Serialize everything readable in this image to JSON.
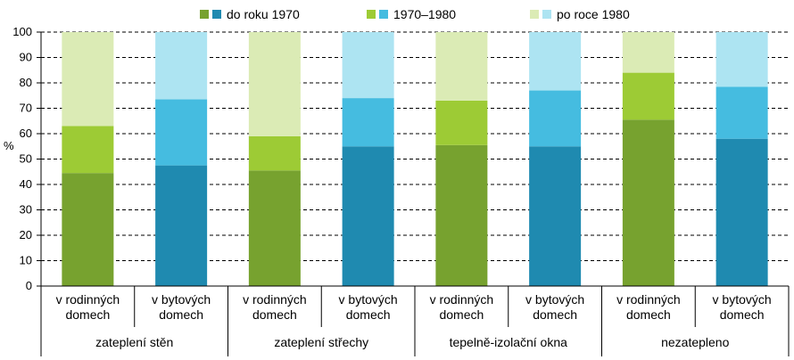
{
  "chart_data": {
    "type": "bar",
    "stacked": true,
    "ylabel": "%",
    "ylim": [
      0,
      100
    ],
    "yticks": [
      "0",
      "10",
      "20",
      "30",
      "40",
      "50",
      "60",
      "70",
      "80",
      "90",
      "100"
    ],
    "grid": "horizontal dashed",
    "legend_placement": "top",
    "legend": [
      {
        "label": "do roku 1970",
        "swatches": [
          "#77a22f",
          "#1f8ab0"
        ]
      },
      {
        "label": "1970–1980",
        "swatches": [
          "#9dcb35",
          "#45bce0"
        ]
      },
      {
        "label": "po roce 1980",
        "swatches": [
          "#dbebb5",
          "#ade4f2"
        ]
      }
    ],
    "groups": [
      {
        "label": "zateplení stěn",
        "categories": [
          0,
          1
        ]
      },
      {
        "label": "zateplení střechy",
        "categories": [
          2,
          3
        ]
      },
      {
        "label": "tepelně-izolační okna",
        "categories": [
          4,
          5
        ]
      },
      {
        "label": "nezatepleno",
        "categories": [
          6,
          7
        ]
      }
    ],
    "categories": [
      {
        "line1": "v rodinných",
        "line2": "domech",
        "kind": "rodinne"
      },
      {
        "line1": "v bytových",
        "line2": "domech",
        "kind": "bytove"
      },
      {
        "line1": "v rodinných",
        "line2": "domech",
        "kind": "rodinne"
      },
      {
        "line1": "v bytových",
        "line2": "domech",
        "kind": "bytove"
      },
      {
        "line1": "v rodinných",
        "line2": "domech",
        "kind": "rodinne"
      },
      {
        "line1": "v bytových",
        "line2": "domech",
        "kind": "bytove"
      },
      {
        "line1": "v rodinných",
        "line2": "domech",
        "kind": "rodinne"
      },
      {
        "line1": "v bytových",
        "line2": "domech",
        "kind": "bytove"
      }
    ],
    "series": [
      {
        "name": "do roku 1970",
        "values": [
          44.5,
          47.5,
          45.5,
          55,
          55.5,
          55,
          65.5,
          58
        ]
      },
      {
        "name": "1970–1980",
        "values": [
          18.5,
          26,
          13.5,
          19,
          17.5,
          22,
          18.5,
          20.5
        ]
      },
      {
        "name": "po roce 1980",
        "values": [
          37,
          26.5,
          41,
          26,
          27,
          23,
          16,
          21.5
        ]
      }
    ],
    "colors": {
      "rodinne": [
        "#77a22f",
        "#9dcb35",
        "#dbebb5"
      ],
      "bytove": [
        "#1f8ab0",
        "#45bce0",
        "#ade4f2"
      ]
    }
  }
}
